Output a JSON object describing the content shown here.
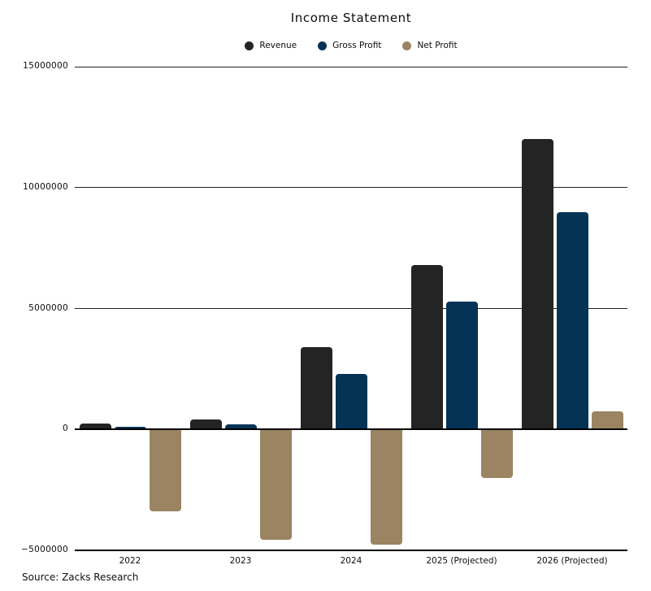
{
  "title": "Income Statement",
  "source": "Source: Zacks Research",
  "colors": {
    "background": "#ffffff",
    "grid": "#222222",
    "axis": "#000000",
    "text": "#0d0d0d",
    "revenue": "#242424",
    "gross_profit": "#053356",
    "net_profit": "#9a8462"
  },
  "legend": {
    "items": [
      {
        "label": "Revenue",
        "color": "#242424"
      },
      {
        "label": "Gross Profit",
        "color": "#053356"
      },
      {
        "label": "Net Profit",
        "color": "#9a8462"
      }
    ]
  },
  "chart_data": {
    "type": "bar",
    "title": "Income Statement",
    "categories": [
      "2022",
      "2023",
      "2024",
      "2025 (Projected)",
      "2026 (Projected)"
    ],
    "series": [
      {
        "name": "Revenue",
        "color": "#242424",
        "values": [
          250000,
          400000,
          3400000,
          6800000,
          12000000
        ]
      },
      {
        "name": "Gross Profit",
        "color": "#053356",
        "values": [
          100000,
          200000,
          2300000,
          5300000,
          9000000
        ]
      },
      {
        "name": "Net Profit",
        "color": "#9a8462",
        "values": [
          -3400000,
          -4550000,
          -4750000,
          -2000000,
          750000
        ]
      }
    ],
    "xlabel": "",
    "ylabel": "",
    "ylim": [
      -5000000,
      15000000
    ],
    "yticks": [
      15000000,
      10000000,
      5000000,
      0,
      -5000000
    ],
    "ytick_labels": [
      "15000000",
      "10000000",
      "5000000",
      "0",
      "−5000000"
    ],
    "grid": "horizontal",
    "legend_position": "top",
    "source": "Source: Zacks Research"
  }
}
